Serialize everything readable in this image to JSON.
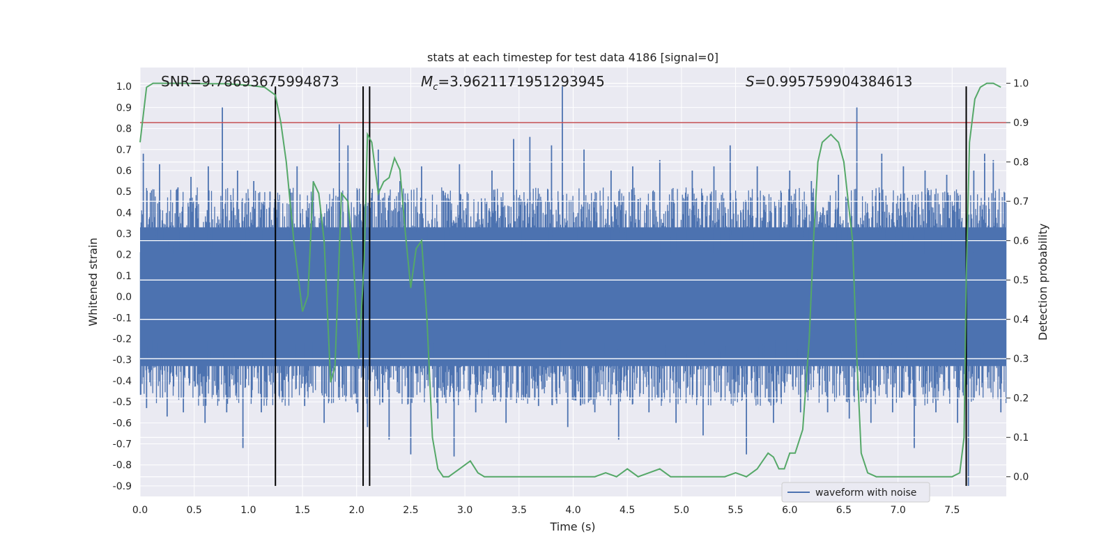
{
  "chart_data": {
    "type": "line",
    "title": "stats at each timestep for test data 4186 [signal=0]",
    "xlabel": "Time (s)",
    "ylabel": "Whitened strain",
    "ylabel_right": "Detection probability",
    "xlim": [
      0.0,
      8.0
    ],
    "ylim": [
      -0.95,
      1.09
    ],
    "ylim_right": [
      -0.05,
      1.04
    ],
    "x_ticks": [
      "0.0",
      "0.5",
      "1.0",
      "1.5",
      "2.0",
      "2.5",
      "3.0",
      "3.5",
      "4.0",
      "4.5",
      "5.0",
      "5.5",
      "6.0",
      "6.5",
      "7.0",
      "7.5"
    ],
    "x_tick_values": [
      0.0,
      0.5,
      1.0,
      1.5,
      2.0,
      2.5,
      3.0,
      3.5,
      4.0,
      4.5,
      5.0,
      5.5,
      6.0,
      6.5,
      7.0,
      7.5
    ],
    "y_ticks": [
      "1.0",
      "0.9",
      "0.8",
      "0.7",
      "0.6",
      "0.5",
      "0.4",
      "0.3",
      "0.2",
      "0.1",
      "0.0",
      "-0.1",
      "-0.2",
      "-0.3",
      "-0.4",
      "-0.5",
      "-0.6",
      "-0.7",
      "-0.8",
      "-0.9"
    ],
    "y_tick_values": [
      1.0,
      0.9,
      0.8,
      0.7,
      0.6,
      0.5,
      0.4,
      0.3,
      0.2,
      0.1,
      0.0,
      -0.1,
      -0.2,
      -0.3,
      -0.4,
      -0.5,
      -0.6,
      -0.7,
      -0.8,
      -0.9
    ],
    "y_right_ticks": [
      "1.0",
      "0.9",
      "0.8",
      "0.7",
      "0.6",
      "0.5",
      "0.4",
      "0.3",
      "0.2",
      "0.1",
      "0.0"
    ],
    "y_right_tick_values": [
      1.0,
      0.9,
      0.8,
      0.7,
      0.6,
      0.5,
      0.4,
      0.3,
      0.2,
      0.1,
      0.0
    ],
    "annotations": {
      "snr": "SNR=9.78693675994873",
      "mc_symbol": "M",
      "mc_subscript": "c",
      "mc_value": "=3.9621171951293945",
      "s_symbol": "S",
      "s_value": "=0.995759904384613"
    },
    "legend": {
      "label": "waveform with noise",
      "placement": "lower-right"
    },
    "threshold_right": 0.9,
    "vertical_lines_x": [
      1.25,
      2.06,
      2.12,
      7.63
    ],
    "waveform": {
      "name": "waveform with noise",
      "color": "#4c72b0",
      "dense_band": [
        -0.33,
        0.33
      ],
      "peaks": [
        {
          "x": 0.03,
          "y": 0.68
        },
        {
          "x": 0.06,
          "y": -0.53
        },
        {
          "x": 0.18,
          "y": 0.63
        },
        {
          "x": 0.25,
          "y": -0.57
        },
        {
          "x": 0.35,
          "y": 0.52
        },
        {
          "x": 0.4,
          "y": -0.55
        },
        {
          "x": 0.47,
          "y": 0.57
        },
        {
          "x": 0.6,
          "y": -0.6
        },
        {
          "x": 0.63,
          "y": 0.62
        },
        {
          "x": 0.76,
          "y": 0.9
        },
        {
          "x": 0.8,
          "y": -0.55
        },
        {
          "x": 0.9,
          "y": 0.6
        },
        {
          "x": 0.95,
          "y": -0.72
        },
        {
          "x": 1.05,
          "y": 0.55
        },
        {
          "x": 1.12,
          "y": -0.55
        },
        {
          "x": 1.2,
          "y": 0.5
        },
        {
          "x": 1.45,
          "y": 0.62
        },
        {
          "x": 1.52,
          "y": -0.52
        },
        {
          "x": 1.6,
          "y": 0.55
        },
        {
          "x": 1.7,
          "y": -0.6
        },
        {
          "x": 1.84,
          "y": 0.82
        },
        {
          "x": 1.92,
          "y": 0.72
        },
        {
          "x": 2.01,
          "y": -0.55
        },
        {
          "x": 2.1,
          "y": -0.62
        },
        {
          "x": 2.2,
          "y": 0.7
        },
        {
          "x": 2.3,
          "y": -0.68
        },
        {
          "x": 2.4,
          "y": 0.55
        },
        {
          "x": 2.5,
          "y": -0.75
        },
        {
          "x": 2.6,
          "y": 0.62
        },
        {
          "x": 2.75,
          "y": -0.58
        },
        {
          "x": 2.9,
          "y": -0.76
        },
        {
          "x": 2.95,
          "y": 0.63
        },
        {
          "x": 3.1,
          "y": -0.55
        },
        {
          "x": 3.25,
          "y": 0.6
        },
        {
          "x": 3.38,
          "y": -0.6
        },
        {
          "x": 3.45,
          "y": 0.75
        },
        {
          "x": 3.6,
          "y": 0.76
        },
        {
          "x": 3.68,
          "y": -0.52
        },
        {
          "x": 3.8,
          "y": 0.72
        },
        {
          "x": 3.9,
          "y": 1.0
        },
        {
          "x": 3.95,
          "y": -0.62
        },
        {
          "x": 4.1,
          "y": 0.7
        },
        {
          "x": 4.2,
          "y": -0.55
        },
        {
          "x": 4.35,
          "y": 0.6
        },
        {
          "x": 4.42,
          "y": -0.68
        },
        {
          "x": 4.55,
          "y": 0.62
        },
        {
          "x": 4.7,
          "y": -0.55
        },
        {
          "x": 4.8,
          "y": 0.65
        },
        {
          "x": 4.95,
          "y": -0.6
        },
        {
          "x": 5.1,
          "y": 0.6
        },
        {
          "x": 5.2,
          "y": -0.66
        },
        {
          "x": 5.3,
          "y": 0.62
        },
        {
          "x": 5.45,
          "y": 0.72
        },
        {
          "x": 5.6,
          "y": -0.75
        },
        {
          "x": 5.7,
          "y": 0.62
        },
        {
          "x": 5.85,
          "y": -0.6
        },
        {
          "x": 6.0,
          "y": 0.6
        },
        {
          "x": 6.1,
          "y": -0.55
        },
        {
          "x": 6.2,
          "y": 0.55
        },
        {
          "x": 6.35,
          "y": -0.55
        },
        {
          "x": 6.45,
          "y": 0.58
        },
        {
          "x": 6.55,
          "y": -0.58
        },
        {
          "x": 6.62,
          "y": 0.9
        },
        {
          "x": 6.75,
          "y": -0.6
        },
        {
          "x": 6.85,
          "y": 0.68
        },
        {
          "x": 6.95,
          "y": -0.55
        },
        {
          "x": 7.05,
          "y": 0.62
        },
        {
          "x": 7.15,
          "y": -0.72
        },
        {
          "x": 7.25,
          "y": 0.6
        },
        {
          "x": 7.35,
          "y": -0.55
        },
        {
          "x": 7.45,
          "y": 0.58
        },
        {
          "x": 7.55,
          "y": -0.6
        },
        {
          "x": 7.65,
          "y": -0.9
        },
        {
          "x": 7.7,
          "y": 0.6
        },
        {
          "x": 7.8,
          "y": 0.68
        },
        {
          "x": 7.88,
          "y": 0.65
        },
        {
          "x": 7.95,
          "y": -0.55
        }
      ]
    },
    "detection_probability": {
      "name": "detection probability",
      "color": "#55a868",
      "x": [
        0.0,
        0.06,
        0.12,
        0.2,
        0.4,
        0.6,
        0.8,
        1.0,
        1.15,
        1.2,
        1.25,
        1.3,
        1.35,
        1.42,
        1.5,
        1.55,
        1.6,
        1.65,
        1.7,
        1.76,
        1.8,
        1.86,
        1.92,
        1.97,
        2.02,
        2.07,
        2.1,
        2.14,
        2.2,
        2.25,
        2.3,
        2.35,
        2.4,
        2.45,
        2.5,
        2.55,
        2.6,
        2.65,
        2.7,
        2.75,
        2.8,
        2.85,
        2.9,
        2.95,
        3.05,
        3.12,
        3.18,
        3.3,
        3.4,
        3.5,
        3.7,
        3.9,
        4.1,
        4.2,
        4.3,
        4.4,
        4.5,
        4.6,
        4.7,
        4.8,
        4.9,
        5.0,
        5.2,
        5.4,
        5.5,
        5.6,
        5.7,
        5.75,
        5.8,
        5.85,
        5.9,
        5.95,
        6.0,
        6.05,
        6.12,
        6.18,
        6.22,
        6.26,
        6.3,
        6.38,
        6.45,
        6.5,
        6.58,
        6.62,
        6.66,
        6.72,
        6.8,
        6.9,
        7.0,
        7.2,
        7.4,
        7.5,
        7.57,
        7.61,
        7.63,
        7.66,
        7.71,
        7.76,
        7.82,
        7.88,
        7.95
      ],
      "y": [
        0.85,
        0.99,
        1.0,
        1.0,
        1.0,
        0.999,
        0.999,
        0.995,
        0.99,
        0.98,
        0.97,
        0.9,
        0.8,
        0.6,
        0.42,
        0.46,
        0.75,
        0.72,
        0.6,
        0.24,
        0.28,
        0.72,
        0.7,
        0.55,
        0.3,
        0.55,
        0.87,
        0.85,
        0.72,
        0.75,
        0.76,
        0.81,
        0.78,
        0.62,
        0.48,
        0.58,
        0.6,
        0.4,
        0.1,
        0.02,
        0.0,
        0.0,
        0.01,
        0.02,
        0.04,
        0.01,
        0.0,
        0.0,
        0.0,
        0.0,
        0.0,
        0.0,
        0.0,
        0.0,
        0.01,
        0.0,
        0.02,
        0.0,
        0.01,
        0.02,
        0.0,
        0.0,
        0.0,
        0.0,
        0.01,
        0.0,
        0.02,
        0.04,
        0.06,
        0.05,
        0.02,
        0.02,
        0.06,
        0.06,
        0.12,
        0.35,
        0.6,
        0.8,
        0.85,
        0.87,
        0.85,
        0.8,
        0.6,
        0.3,
        0.06,
        0.01,
        0.0,
        0.0,
        0.0,
        0.0,
        0.0,
        0.0,
        0.01,
        0.1,
        0.5,
        0.85,
        0.96,
        0.99,
        1.0,
        1.0,
        0.99
      ]
    }
  }
}
